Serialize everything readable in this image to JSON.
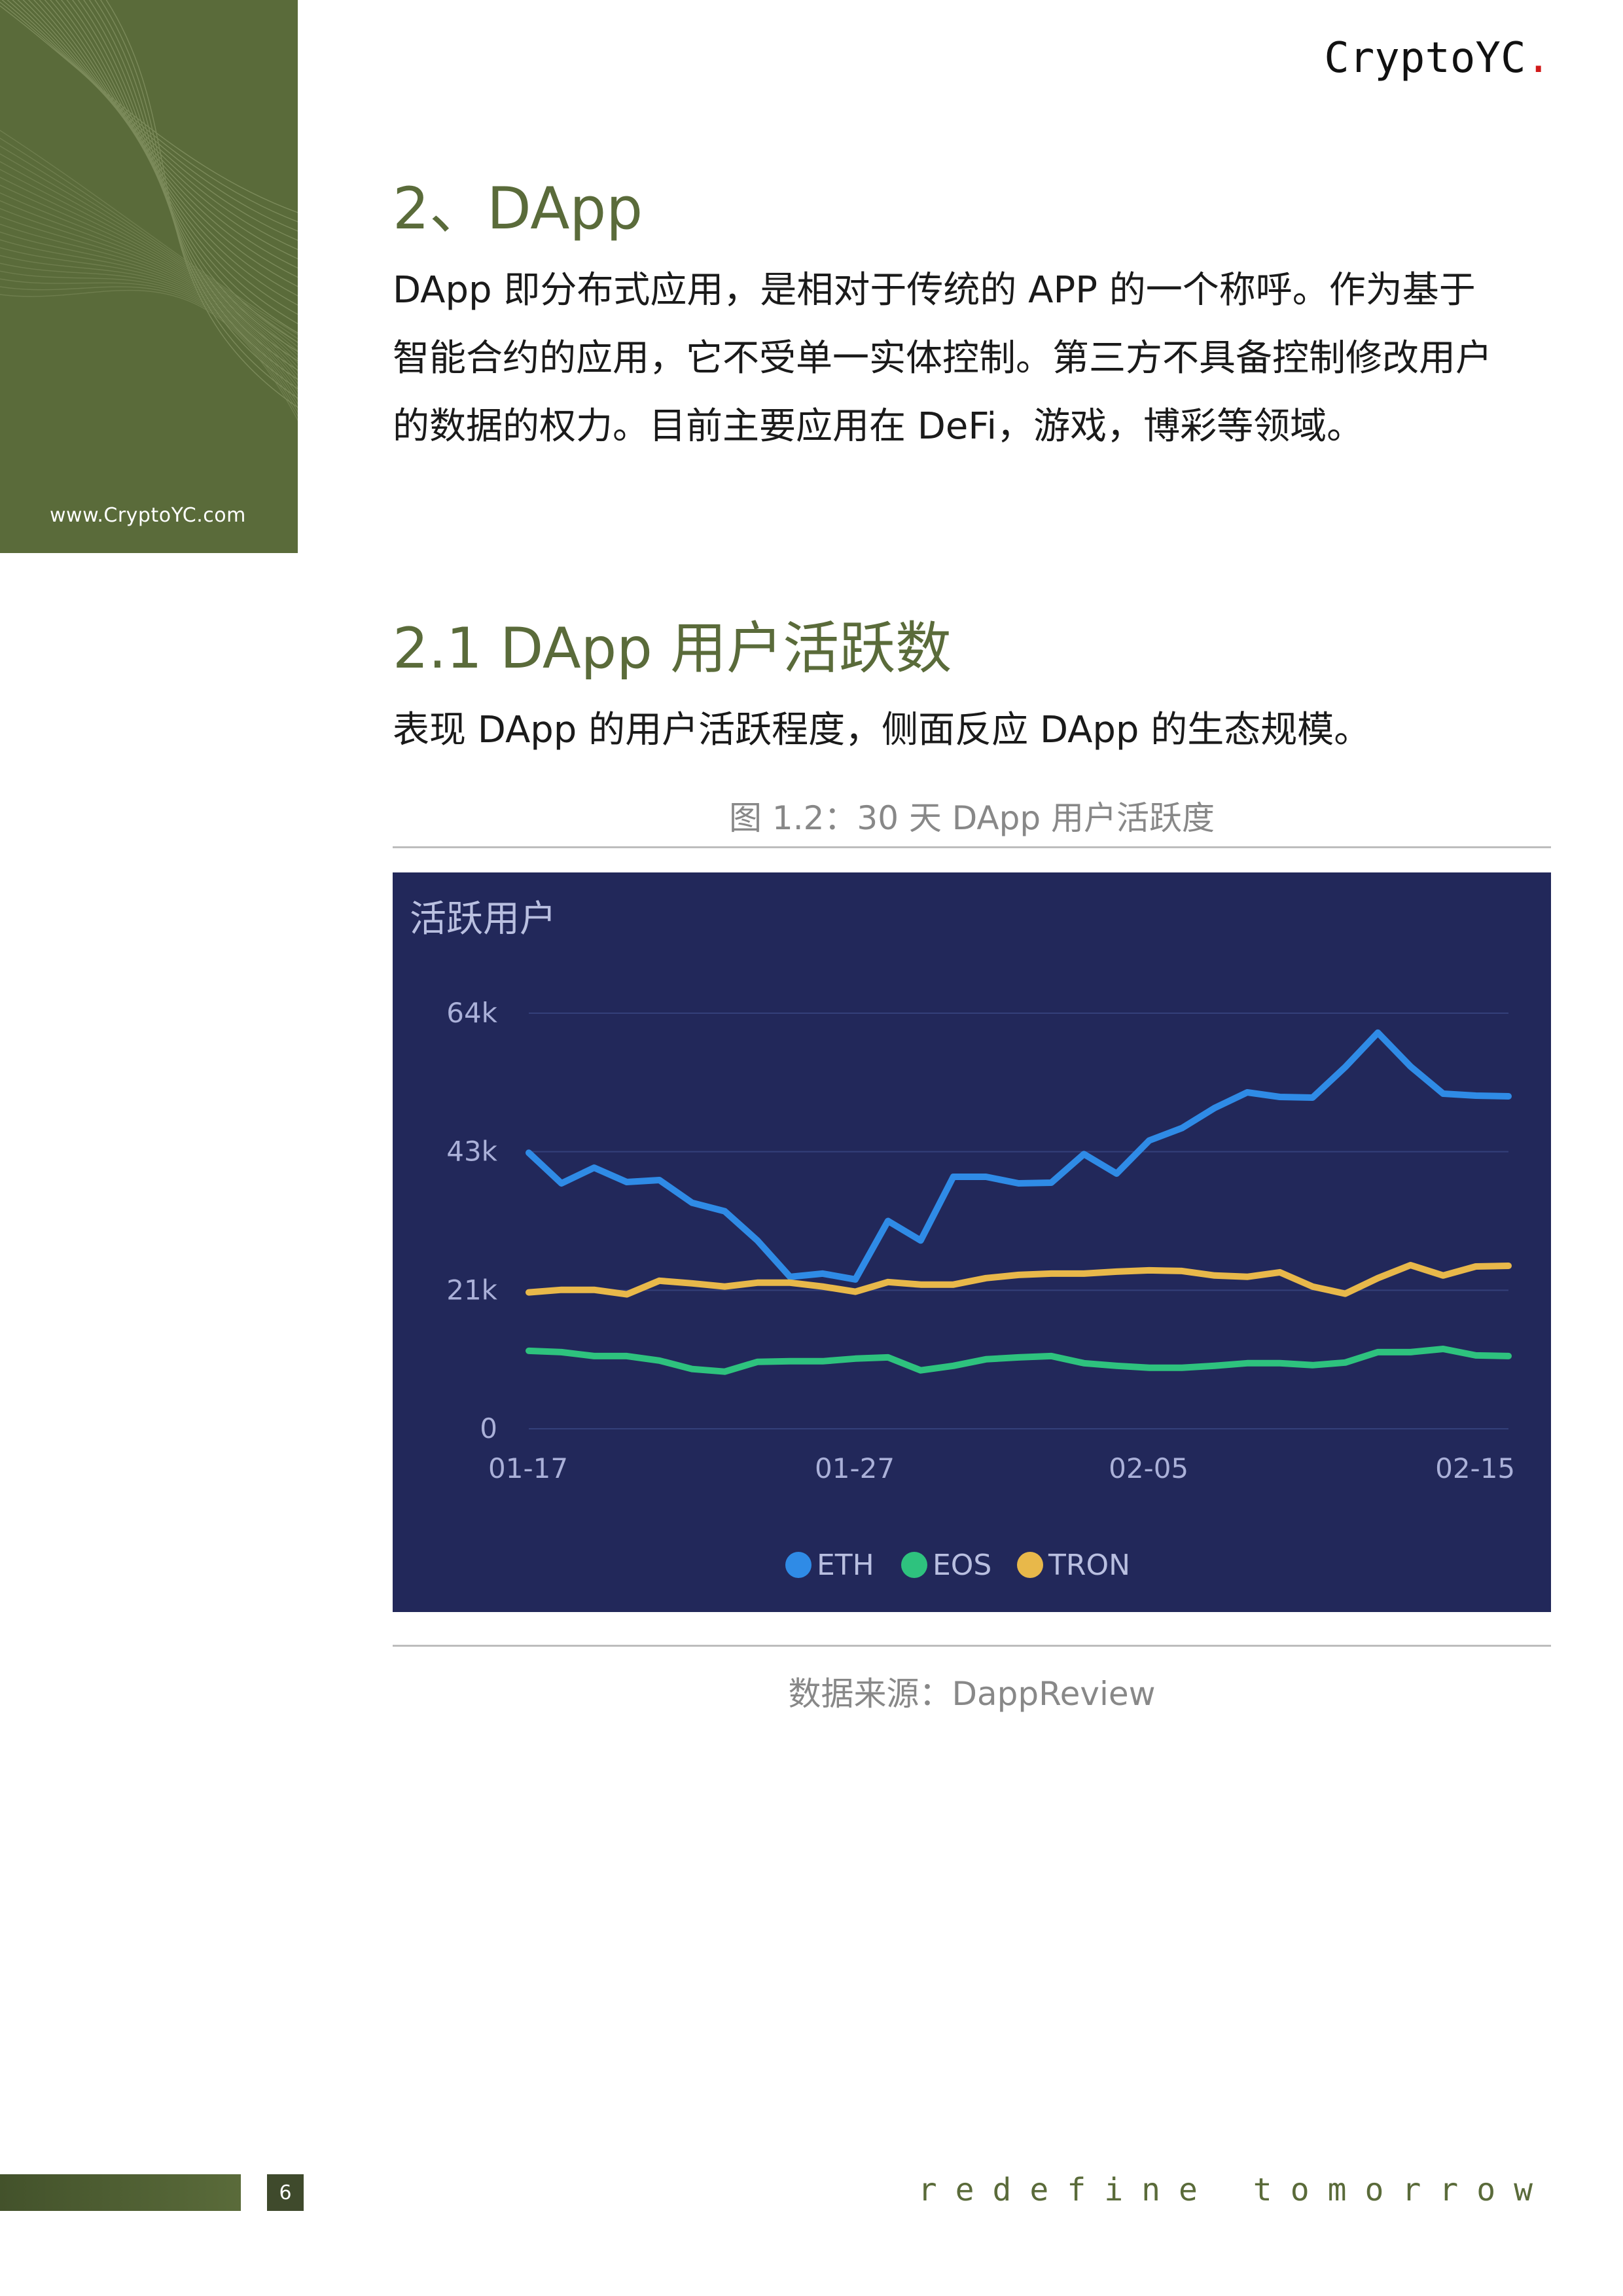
{
  "brand": {
    "name": "CryptoYC",
    "dot": "."
  },
  "sidebar": {
    "url": "www.CryptoYC.com"
  },
  "section": {
    "heading": "2、DApp",
    "paragraph_lines": [
      "DApp 即分布式应用，是相对于传统的 APP 的一个称呼。作为基于",
      "智能合约的应用，它不受单一实体控制。第三方不具备控制修改用户",
      "的数据的权力。目前主要应用在 DeFi，游戏，博彩等领域。"
    ]
  },
  "subsection": {
    "heading": "2.1 DApp 用户活跃数",
    "paragraph": "表现 DApp 的用户活跃程度，侧面反应 DApp 的生态规模。"
  },
  "figure": {
    "caption": "图 1.2：30 天 DApp 用户活跃度",
    "source": "数据来源：DappReview"
  },
  "chart_data": {
    "type": "line",
    "title": "活跃用户",
    "xlabel": "",
    "ylabel": "",
    "x": [
      "01-17",
      "01-18",
      "01-19",
      "01-20",
      "01-21",
      "01-22",
      "01-23",
      "01-24",
      "01-25",
      "01-26",
      "01-27",
      "01-28",
      "01-29",
      "01-30",
      "01-31",
      "02-01",
      "02-02",
      "02-03",
      "02-04",
      "02-05",
      "02-06",
      "02-07",
      "02-08",
      "02-09",
      "02-10",
      "02-11",
      "02-12",
      "02-13",
      "02-14",
      "02-15",
      "02-16"
    ],
    "x_tick_labels": [
      "01-17",
      "01-27",
      "02-05",
      "02-15"
    ],
    "y_tick_labels": [
      "0",
      "21k",
      "43k",
      "64k"
    ],
    "y_ticks": [
      0,
      21333,
      42667,
      64000
    ],
    "ylim": [
      0,
      64000
    ],
    "grid": true,
    "legend_position": "bottom-center",
    "series": [
      {
        "name": "ETH",
        "color": "#2f8be6",
        "values": [
          42500,
          37800,
          40200,
          38000,
          38300,
          34800,
          33500,
          29000,
          23400,
          23900,
          23000,
          32000,
          29000,
          38800,
          38800,
          37800,
          37900,
          42300,
          39300,
          44400,
          46300,
          49400,
          51800,
          51100,
          51000,
          55700,
          61000,
          55800,
          51600,
          51300,
          51200
        ]
      },
      {
        "name": "EOS",
        "color": "#2ec27e",
        "values": [
          12000,
          11800,
          11200,
          11200,
          10500,
          9200,
          8800,
          10300,
          10400,
          10400,
          10800,
          11000,
          9000,
          9700,
          10700,
          11000,
          11200,
          10100,
          9700,
          9400,
          9400,
          9700,
          10100,
          10100,
          9800,
          10200,
          11800,
          11800,
          12300,
          11300,
          11200
        ]
      },
      {
        "name": "TRON",
        "color": "#e8b84a",
        "values": [
          21000,
          21400,
          21400,
          20700,
          22800,
          22400,
          21900,
          22500,
          22500,
          21900,
          21100,
          22600,
          22200,
          22200,
          23200,
          23700,
          23900,
          23900,
          24200,
          24400,
          24300,
          23600,
          23400,
          24100,
          21900,
          20800,
          23200,
          25200,
          23600,
          25000,
          25100
        ]
      }
    ]
  },
  "footer": {
    "page_number": "6",
    "tagline": "redefine tomorrow"
  }
}
